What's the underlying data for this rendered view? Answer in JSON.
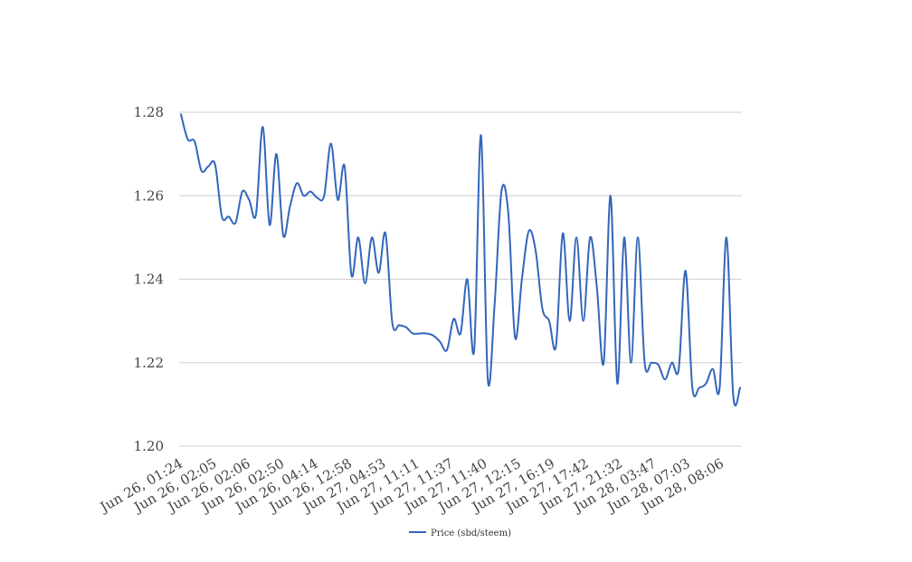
{
  "chart_data": {
    "type": "line",
    "title": "",
    "xlabel": "",
    "ylabel": "",
    "ylim": [
      1.2,
      1.28
    ],
    "y_ticks": [
      "1.20",
      "1.22",
      "1.24",
      "1.26",
      "1.28"
    ],
    "grid": true,
    "legend_position": "bottom",
    "x_tick_labels": [
      "Jun 26, 01:24",
      "Jun 26, 02:05",
      "Jun 26, 02:06",
      "Jun 26, 02:50",
      "Jun 26, 04:14",
      "Jun 26, 12:58",
      "Jun 27, 04:53",
      "Jun 27, 11:11",
      "Jun 27, 11:37",
      "Jun 27, 11:40",
      "Jun 27, 12:15",
      "Jun 27, 16:19",
      "Jun 27, 17:42",
      "Jun 27, 21:32",
      "Jun 28, 03:47",
      "Jun 28, 07:03",
      "Jun 28, 08:06"
    ],
    "series": [
      {
        "name": "Price (sbd/steem)",
        "color": "#3366bb",
        "values": [
          1.2795,
          1.2735,
          1.273,
          1.266,
          1.267,
          1.2675,
          1.255,
          1.255,
          1.2535,
          1.261,
          1.259,
          1.2555,
          1.2765,
          1.253,
          1.27,
          1.2505,
          1.2575,
          1.263,
          1.26,
          1.261,
          1.2595,
          1.26,
          1.2725,
          1.259,
          1.267,
          1.241,
          1.25,
          1.239,
          1.25,
          1.2415,
          1.251,
          1.2295,
          1.229,
          1.2285,
          1.227,
          1.227,
          1.227,
          1.2265,
          1.225,
          1.223,
          1.2305,
          1.227,
          1.24,
          1.223,
          1.2745,
          1.216,
          1.234,
          1.261,
          1.256,
          1.226,
          1.24,
          1.2515,
          1.247,
          1.233,
          1.23,
          1.224,
          1.251,
          1.23,
          1.25,
          1.23,
          1.25,
          1.238,
          1.22,
          1.26,
          1.215,
          1.25,
          1.22,
          1.25,
          1.22,
          1.22,
          1.2195,
          1.216,
          1.22,
          1.2185,
          1.242,
          1.214,
          1.214,
          1.215,
          1.2185,
          1.214,
          1.25,
          1.212,
          1.214
        ]
      }
    ]
  }
}
